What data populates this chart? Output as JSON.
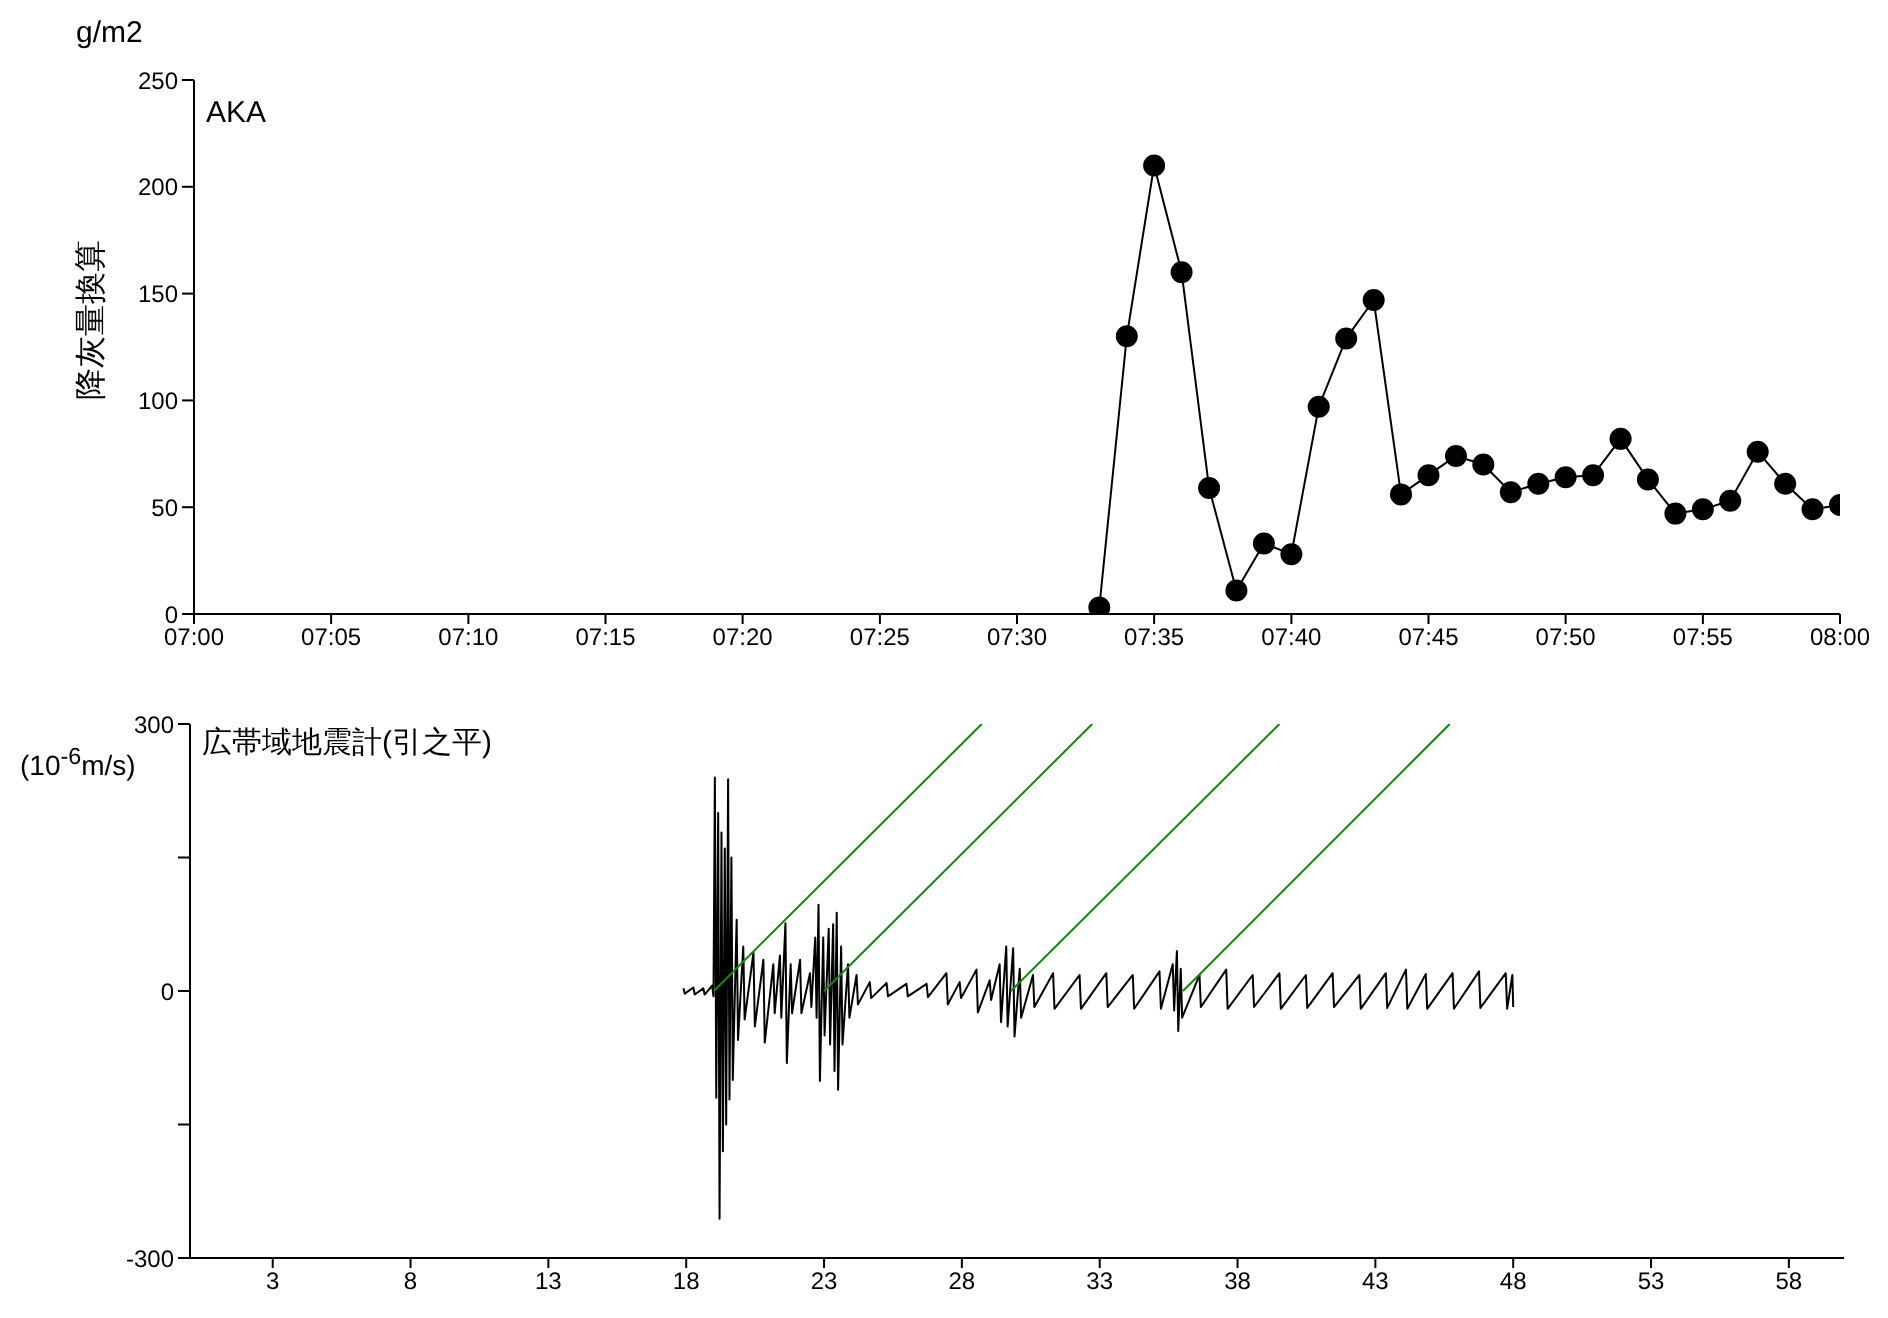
{
  "chart_data": [
    {
      "type": "line",
      "title": "AKA",
      "ylabel": "降灰量換算",
      "annotations": [
        "g/m2"
      ],
      "marker": "circle",
      "line_style": "solid",
      "legend": false,
      "grid": false,
      "xlim": [
        7,
        8
      ],
      "xticks": [
        {
          "value": 7,
          "label": "07:00"
        },
        {
          "value": 7.0833,
          "label": "07:05"
        },
        {
          "value": 7.1667,
          "label": "07:10"
        },
        {
          "value": 7.25,
          "label": "07:15"
        },
        {
          "value": 7.3333,
          "label": "07:20"
        },
        {
          "value": 7.4167,
          "label": "07:25"
        },
        {
          "value": 7.5,
          "label": "07:30"
        },
        {
          "value": 7.5833,
          "label": "07:35"
        },
        {
          "value": 7.6667,
          "label": "07:40"
        },
        {
          "value": 7.75,
          "label": "07:45"
        },
        {
          "value": 7.8333,
          "label": "07:50"
        },
        {
          "value": 7.9167,
          "label": "07:55"
        },
        {
          "value": 8,
          "label": "08:00"
        }
      ],
      "ylim": [
        0,
        250
      ],
      "yticks": [
        0,
        50,
        100,
        150,
        200,
        250
      ],
      "x": [
        7.55,
        7.5667,
        7.5833,
        7.6,
        7.6167,
        7.6333,
        7.65,
        7.6667,
        7.6833,
        7.7,
        7.7167,
        7.7333,
        7.75,
        7.7667,
        7.7833,
        7.8,
        7.8167,
        7.8333,
        7.85,
        7.8667,
        7.8833,
        7.9,
        7.9167,
        7.9333,
        7.95,
        7.9667,
        7.9833,
        8
      ],
      "series": [
        {
          "color": "#000000",
          "values": [
            3,
            130,
            210,
            160,
            59,
            11,
            33,
            28,
            97,
            129,
            147,
            56,
            65,
            74,
            70,
            57,
            61,
            64,
            65,
            82,
            63,
            47,
            49,
            53,
            76,
            61,
            49,
            51
          ]
        }
      ]
    },
    {
      "type": "line",
      "title": "広帯域地震計(引之平)",
      "ylabel": "(10$^{-6}$m/s)",
      "marker": "none",
      "line_style": "solid",
      "legend": false,
      "grid": false,
      "xlim": [
        0,
        60
      ],
      "xticks": [
        3,
        8,
        13,
        18,
        23,
        28,
        33,
        38,
        43,
        48,
        53,
        58
      ],
      "ylim": [
        -300,
        300
      ],
      "yticks": [
        -300,
        {
          "value": -150,
          "label": null
        },
        0,
        {
          "value": 150,
          "label": null
        },
        300
      ],
      "series": [
        {
          "color": "#000000",
          "x": [
            17.9,
            17.95,
            18.26,
            18.31,
            18.62,
            18.67,
            18.94,
            18.99,
            19.04,
            19.09,
            19.16,
            19.21,
            19.28,
            19.33,
            19.4,
            19.45,
            19.52,
            19.57,
            19.64,
            19.69,
            19.83,
            19.88,
            20.07,
            20.12,
            20.44,
            20.49,
            20.8,
            20.85,
            21.16,
            21.21,
            21.4,
            21.45,
            21.6,
            21.65,
            21.79,
            21.84,
            22.13,
            22.18,
            22.49,
            22.54,
            22.68,
            22.73,
            22.8,
            22.85,
            22.97,
            23.02,
            23.17,
            23.22,
            23.33,
            23.38,
            23.46,
            23.51,
            23.62,
            23.67,
            23.87,
            23.92,
            24.18,
            24.23,
            24.66,
            24.71,
            25.27,
            25.32,
            25.99,
            26.04,
            26.72,
            26.77,
            27.44,
            27.49,
            27.92,
            27.97,
            28.53,
            28.58,
            29.01,
            29.06,
            29.37,
            29.42,
            29.61,
            29.66,
            29.86,
            29.91,
            30.1,
            30.15,
            30.58,
            30.63,
            31.31,
            31.36,
            32.27,
            32.32,
            33.24,
            33.29,
            34.2,
            34.25,
            35.17,
            35.22,
            35.65,
            35.7,
            35.8,
            35.85,
            35.94,
            35.99,
            36.62,
            36.67,
            37.59,
            37.64,
            38.55,
            38.6,
            39.52,
            39.57,
            40.48,
            40.53,
            41.45,
            41.5,
            42.42,
            42.47,
            43.38,
            43.43,
            44.11,
            44.16,
            44.83,
            44.88,
            45.8,
            45.85,
            46.76,
            46.81,
            47.73,
            47.78,
            47.97,
            48.0
          ],
          "values": [
            3,
            -3,
            4,
            -4,
            3,
            -4,
            6,
            -6,
            240,
            -120,
            200,
            -256,
            178,
            -180,
            160,
            -150,
            238,
            -122,
            150,
            -100,
            80,
            -55,
            50,
            -32,
            43,
            -40,
            35,
            -58,
            30,
            -25,
            40,
            -30,
            76,
            -81,
            30,
            -25,
            35,
            -25,
            20,
            -18,
            60,
            -30,
            97,
            -101,
            60,
            -50,
            70,
            -60,
            75,
            -90,
            88,
            -111,
            50,
            -60,
            30,
            -30,
            18,
            -15,
            10,
            -8,
            9,
            -6,
            8,
            -6,
            8,
            -7,
            20,
            -15,
            10,
            -8,
            24,
            -24,
            12,
            -10,
            30,
            -35,
            50,
            -40,
            48,
            -51,
            25,
            -30,
            18,
            -18,
            20,
            -20,
            18,
            -20,
            20,
            -18,
            18,
            -20,
            22,
            -20,
            30,
            -22,
            45,
            -45,
            25,
            -30,
            18,
            -18,
            24,
            -20,
            18,
            -18,
            20,
            -20,
            18,
            -19,
            20,
            -18,
            18,
            -20,
            20,
            -19,
            24,
            -20,
            19,
            -20,
            20,
            -20,
            22,
            -19,
            20,
            -20,
            18,
            -18
          ]
        },
        {
          "color": "#0a8a0a",
          "x": [
            19.0,
            28.72
          ],
          "values": [
            0,
            300
          ]
        },
        {
          "color": "#0a8a0a",
          "x": [
            23.0,
            32.73
          ],
          "values": [
            0,
            300
          ]
        },
        {
          "color": "#0a8a0a",
          "x": [
            29.78,
            39.52
          ],
          "values": [
            0,
            300
          ]
        },
        {
          "color": "#0a8a0a",
          "x": [
            36.02,
            45.7
          ],
          "values": [
            0,
            300
          ]
        }
      ]
    }
  ]
}
